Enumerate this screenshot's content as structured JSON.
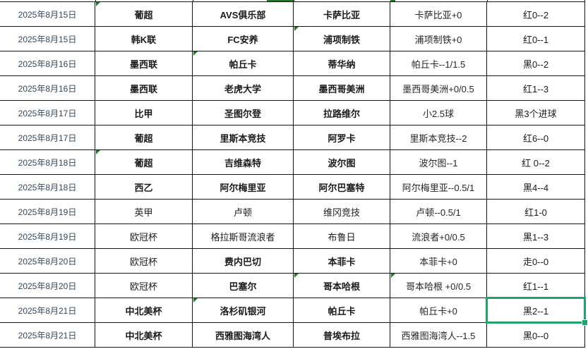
{
  "app": {
    "title": "足球比赛盘口战绩表"
  },
  "colors": {
    "background": "#ffffff",
    "grid_line": "#141414",
    "date_text": "#33475c",
    "body_text": "#1a1a1a",
    "flag_triangle_green": "#1e7c1e",
    "selection_green": "#1fa36b"
  },
  "table": {
    "columns": [
      "date",
      "league",
      "home",
      "away",
      "handicap",
      "result"
    ],
    "rows": [
      {
        "date": "2025年8月15日",
        "league": "葡超",
        "home": "AVS俱乐部",
        "away": "卡萨比亚",
        "handicap": "卡萨比亚+0",
        "result": "红0--2",
        "league_bold": true,
        "team_bold": true
      },
      {
        "date": "2025年8月15日",
        "league": "韩K联",
        "home": "FC安养",
        "away": "浦项制铁",
        "handicap": "浦项制铁+0",
        "result": "红0--1",
        "league_bold": true,
        "team_bold": true
      },
      {
        "date": "2025年8月16日",
        "league": "墨西联",
        "home": "帕丘卡",
        "away": "蒂华纳",
        "handicap": "帕丘卡--1/1.5",
        "result": "黑0--2",
        "league_bold": true,
        "team_bold": true
      },
      {
        "date": "2025年8月16日",
        "league": "墨西联",
        "home": "老虎大学",
        "away": "墨西哥美洲",
        "handicap": "墨西哥美洲+0/0.5",
        "result": "红1--3",
        "league_bold": true,
        "team_bold": true
      },
      {
        "date": "2025年8月17日",
        "league": "比甲",
        "home": "圣图尔登",
        "away": "拉路维尔",
        "handicap": "小2.5球",
        "result": "黑3个进球",
        "league_bold": true,
        "team_bold": true
      },
      {
        "date": "2025年8月17日",
        "league": "葡超",
        "home": "里斯本竞技",
        "away": "阿罗卡",
        "handicap": "里斯本竞技--2",
        "result": "红6--0",
        "league_bold": true,
        "team_bold": true
      },
      {
        "date": "2025年8月18日",
        "league": "葡超",
        "home": "吉维森特",
        "away": "波尔图",
        "handicap": "波尔图--1",
        "result": "红 0--2",
        "league_bold": true,
        "team_bold": true
      },
      {
        "date": "2025年8月18日",
        "league": "西乙",
        "home": "阿尔梅里亚",
        "away": "阿尔巴塞特",
        "handicap": "阿尔梅里亚--0.5/1",
        "result": "黑4--4",
        "league_bold": true,
        "team_bold": true
      },
      {
        "date": "2025年8月19日",
        "league": "英甲",
        "home": "卢顿",
        "away": "维冈竞技",
        "handicap": "卢顿--0.5/1",
        "result": "红1-0",
        "league_bold": false,
        "team_bold": false
      },
      {
        "date": "2025年8月19日",
        "league": "欧冠杯",
        "home": "格拉斯哥流浪者",
        "away": "布鲁日",
        "handicap": "流浪者+0/0.5",
        "result": "黑1--3",
        "league_bold": false,
        "team_bold": false
      },
      {
        "date": "2025年8月20日",
        "league": "欧冠杯",
        "home": "费内巴切",
        "away": "本菲卡",
        "handicap": "本菲卡+0",
        "result": "走0--0",
        "league_bold": false,
        "team_bold": true
      },
      {
        "date": "2025年8月20日",
        "league": "欧冠杯",
        "home": "巴塞尔",
        "away": "哥本哈根",
        "handicap": "哥本哈根 +0/0.5",
        "result": "红1--1",
        "league_bold": false,
        "team_bold": true
      },
      {
        "date": "2025年8月21日",
        "league": "中北美杯",
        "home": "洛杉矶银河",
        "away": "帕丘卡",
        "handicap": "帕丘卡+0",
        "result": "黑2--1",
        "league_bold": true,
        "team_bold": true
      },
      {
        "date": "2025年8月21日",
        "league": "中北美杯",
        "home": "西雅图海湾人",
        "away": "普埃布拉",
        "handicap": "西雅图海湾人--1.5",
        "result": "黑0--0",
        "league_bold": true,
        "team_bold": true
      }
    ],
    "flag_cells": [
      {
        "row": 0,
        "col": 1
      },
      {
        "row": 1,
        "col": 3
      },
      {
        "row": 2,
        "col": 2
      },
      {
        "row": 6,
        "col": 1
      },
      {
        "row": 11,
        "col": 3
      },
      {
        "row": 11,
        "col": 4
      },
      {
        "row": 12,
        "col": 2
      }
    ],
    "selected_cell": {
      "row": 12,
      "col": 5,
      "value": "黑2--1"
    }
  }
}
